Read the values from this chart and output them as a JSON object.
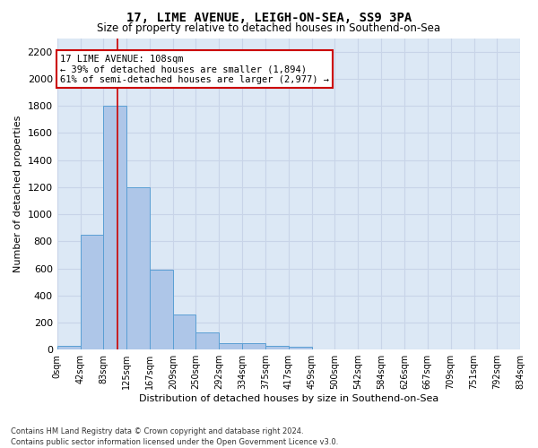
{
  "title": "17, LIME AVENUE, LEIGH-ON-SEA, SS9 3PA",
  "subtitle": "Size of property relative to detached houses in Southend-on-Sea",
  "xlabel": "Distribution of detached houses by size in Southend-on-Sea",
  "ylabel": "Number of detached properties",
  "footer": "Contains HM Land Registry data © Crown copyright and database right 2024.\nContains public sector information licensed under the Open Government Licence v3.0.",
  "bin_edges": [
    0,
    42,
    83,
    125,
    167,
    209,
    250,
    292,
    334,
    375,
    417,
    459,
    500,
    542,
    584,
    626,
    667,
    709,
    751,
    792,
    834
  ],
  "bar_heights": [
    25,
    850,
    1800,
    1200,
    590,
    260,
    125,
    50,
    45,
    30,
    18,
    0,
    0,
    0,
    0,
    0,
    0,
    0,
    0,
    0
  ],
  "bar_color": "#aec6e8",
  "bar_edge_color": "#5a9fd4",
  "grid_color": "#c8d4e8",
  "background_color": "#dce8f5",
  "property_sqm": 108,
  "property_line_color": "#cc0000",
  "annotation_line1": "17 LIME AVENUE: 108sqm",
  "annotation_line2": "← 39% of detached houses are smaller (1,894)",
  "annotation_line3": "61% of semi-detached houses are larger (2,977) →",
  "annotation_box_color": "#cc0000",
  "ylim": [
    0,
    2300
  ],
  "yticks": [
    0,
    200,
    400,
    600,
    800,
    1000,
    1200,
    1400,
    1600,
    1800,
    2000,
    2200
  ],
  "title_fontsize": 10,
  "subtitle_fontsize": 8.5,
  "ylabel_fontsize": 8,
  "xlabel_fontsize": 8,
  "footer_fontsize": 6,
  "annotation_fontsize": 7.5,
  "xtick_fontsize": 7,
  "ytick_fontsize": 8
}
